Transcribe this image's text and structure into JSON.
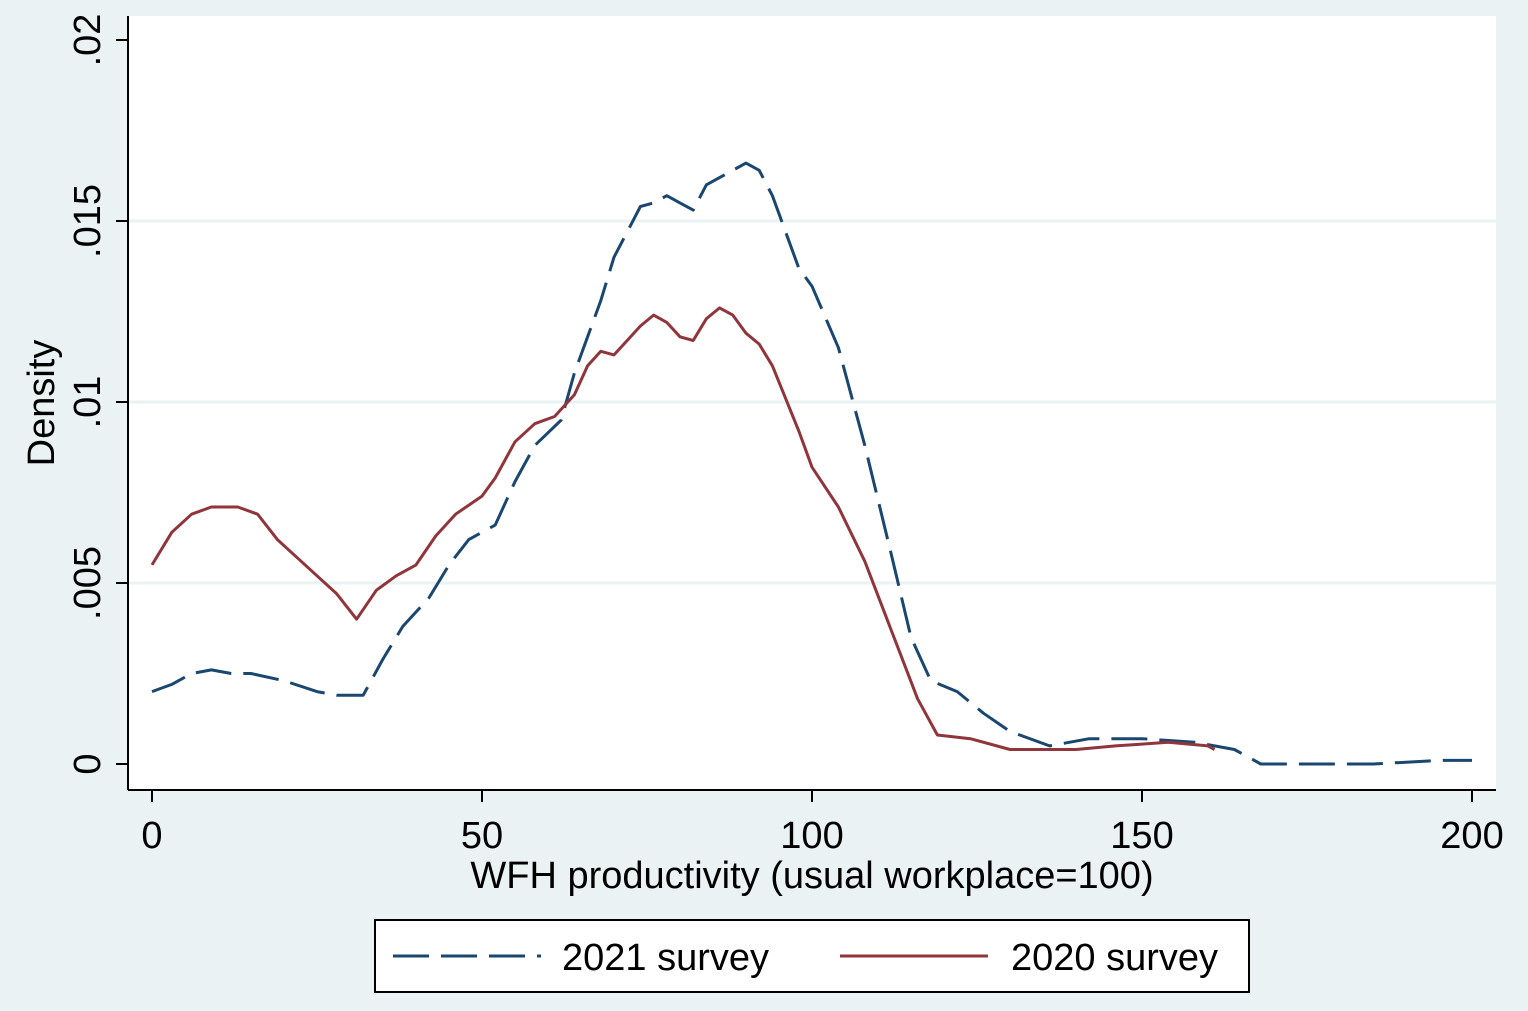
{
  "chart_data": {
    "type": "line",
    "title": "",
    "xlabel": "WFH productivity (usual workplace=100)",
    "ylabel": "Density",
    "xlim": [
      0,
      200
    ],
    "ylim": [
      0,
      0.02
    ],
    "x_ticks": [
      0,
      50,
      100,
      150,
      200
    ],
    "x_tick_labels": [
      "0",
      "50",
      "100",
      "150",
      "200"
    ],
    "y_ticks": [
      0,
      0.005,
      0.01,
      0.015,
      0.02
    ],
    "y_tick_labels": [
      "0",
      ".005",
      ".01",
      ".015",
      ".02"
    ],
    "grid": "horizontal",
    "legend_position": "bottom",
    "series": [
      {
        "name": "2021 survey",
        "color": "#1a476f",
        "dash": "dashed",
        "x": [
          0,
          3,
          6,
          9,
          12,
          15,
          20,
          25,
          28,
          30,
          32,
          35,
          38,
          40,
          42,
          45,
          48,
          50,
          52,
          55,
          58,
          62,
          64,
          66,
          68,
          70,
          72,
          74,
          76,
          78,
          80,
          82,
          84,
          86,
          88,
          90,
          92,
          94,
          96,
          98,
          100,
          104,
          108,
          112,
          115,
          118,
          122,
          126,
          130,
          136,
          142,
          150,
          158,
          164,
          168,
          175,
          185,
          195,
          200
        ],
        "y": [
          0.002,
          0.0022,
          0.0025,
          0.0026,
          0.0025,
          0.0025,
          0.0023,
          0.002,
          0.0019,
          0.0019,
          0.0019,
          0.0029,
          0.0038,
          0.0042,
          0.0046,
          0.0055,
          0.0062,
          0.0064,
          0.0066,
          0.0078,
          0.0088,
          0.0095,
          0.0108,
          0.0118,
          0.0128,
          0.014,
          0.0147,
          0.0154,
          0.0155,
          0.0157,
          0.0155,
          0.0153,
          0.016,
          0.0162,
          0.0164,
          0.0166,
          0.0164,
          0.0157,
          0.0147,
          0.0137,
          0.0132,
          0.0115,
          0.0088,
          0.0058,
          0.0035,
          0.0023,
          0.002,
          0.0014,
          0.0009,
          0.0005,
          0.0007,
          0.0007,
          0.0006,
          0.0004,
          0.0,
          0.0,
          0.0,
          0.0001,
          0.0001
        ]
      },
      {
        "name": "2020 survey",
        "color": "#90353b",
        "dash": "solid",
        "x": [
          0,
          3,
          6,
          9,
          11,
          13,
          16,
          19,
          22,
          25,
          28,
          31,
          34,
          37,
          40,
          43,
          46,
          50,
          52,
          55,
          58,
          61,
          64,
          66,
          68,
          70,
          72,
          74,
          76,
          78,
          80,
          82,
          84,
          86,
          88,
          90,
          92,
          94,
          96,
          98,
          100,
          104,
          108,
          112,
          116,
          119,
          124,
          130,
          136,
          140,
          146,
          154,
          160,
          161
        ],
        "y": [
          0.0055,
          0.0064,
          0.0069,
          0.0071,
          0.0071,
          0.0071,
          0.0069,
          0.0062,
          0.0057,
          0.0052,
          0.0047,
          0.004,
          0.0048,
          0.0052,
          0.0055,
          0.0063,
          0.0069,
          0.0074,
          0.0079,
          0.0089,
          0.0094,
          0.0096,
          0.0102,
          0.011,
          0.0114,
          0.0113,
          0.0117,
          0.0121,
          0.0124,
          0.0122,
          0.0118,
          0.0117,
          0.0123,
          0.0126,
          0.0124,
          0.0119,
          0.0116,
          0.011,
          0.0101,
          0.0092,
          0.0082,
          0.0071,
          0.0056,
          0.0037,
          0.0018,
          0.0008,
          0.0007,
          0.0004,
          0.0004,
          0.0004,
          0.0005,
          0.0006,
          0.0005,
          0.0004
        ]
      }
    ]
  }
}
